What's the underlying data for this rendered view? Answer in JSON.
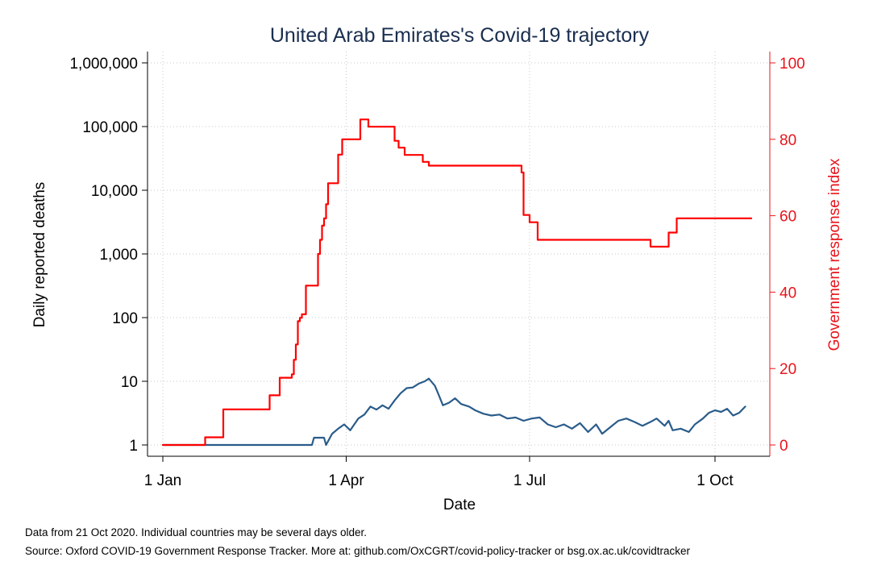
{
  "chart_data": {
    "type": "line",
    "title": "United Arab Emirates's Covid-19 trajectory",
    "xlabel": "Date",
    "ylabel_left": "Daily reported deaths",
    "ylabel_right": "Government response index",
    "left_axis": {
      "scale": "log",
      "ylim": [
        1,
        1000000
      ],
      "ticks": [
        1,
        10,
        100,
        1000,
        10000,
        100000,
        1000000
      ],
      "tick_labels": [
        "1",
        "10",
        "100",
        "1,000",
        "10,000",
        "100,000",
        "1,000,000"
      ]
    },
    "right_axis": {
      "scale": "linear",
      "ylim": [
        0,
        100
      ],
      "ticks": [
        0,
        20,
        40,
        60,
        80,
        100
      ],
      "tick_labels": [
        "0",
        "20",
        "40",
        "60",
        "80",
        "100"
      ]
    },
    "x_axis": {
      "range": [
        "2020-01-01",
        "2020-10-21"
      ],
      "ticks": [
        "2020-01-01",
        "2020-04-01",
        "2020-07-01",
        "2020-10-01"
      ],
      "tick_labels": [
        "1 Jan",
        "1 Apr",
        "1 Jul",
        "1 Oct"
      ]
    },
    "grid": true,
    "colors": {
      "deaths": "#2a5c8a",
      "stringency": "#ff0000",
      "title": "#1a2e4f",
      "right_axis": "#e8141b"
    },
    "series": [
      {
        "axis": "left",
        "style": "smooth",
        "points": [
          [
            "2020-01-01",
            1
          ],
          [
            "2020-03-15",
            1
          ],
          [
            "2020-03-16",
            1.3
          ],
          [
            "2020-03-21",
            1.3
          ],
          [
            "2020-03-22",
            1
          ],
          [
            "2020-03-25",
            1.5
          ],
          [
            "2020-03-28",
            1.8
          ],
          [
            "2020-03-31",
            2.1
          ],
          [
            "2020-04-03",
            1.7
          ],
          [
            "2020-04-07",
            2.6
          ],
          [
            "2020-04-10",
            3.0
          ],
          [
            "2020-04-13",
            4.0
          ],
          [
            "2020-04-16",
            3.6
          ],
          [
            "2020-04-19",
            4.2
          ],
          [
            "2020-04-22",
            3.7
          ],
          [
            "2020-04-25",
            5.0
          ],
          [
            "2020-04-28",
            6.5
          ],
          [
            "2020-05-01",
            7.8
          ],
          [
            "2020-05-04",
            8.0
          ],
          [
            "2020-05-07",
            9.2
          ],
          [
            "2020-05-10",
            10.0
          ],
          [
            "2020-05-12",
            11.0
          ],
          [
            "2020-05-15",
            8.5
          ],
          [
            "2020-05-17",
            6.0
          ],
          [
            "2020-05-19",
            4.2
          ],
          [
            "2020-05-22",
            4.6
          ],
          [
            "2020-05-25",
            5.4
          ],
          [
            "2020-05-28",
            4.4
          ],
          [
            "2020-06-01",
            4.0
          ],
          [
            "2020-06-04",
            3.5
          ],
          [
            "2020-06-08",
            3.1
          ],
          [
            "2020-06-12",
            2.9
          ],
          [
            "2020-06-16",
            3.0
          ],
          [
            "2020-06-20",
            2.6
          ],
          [
            "2020-06-24",
            2.7
          ],
          [
            "2020-06-28",
            2.4
          ],
          [
            "2020-07-02",
            2.6
          ],
          [
            "2020-07-06",
            2.7
          ],
          [
            "2020-07-10",
            2.1
          ],
          [
            "2020-07-14",
            1.9
          ],
          [
            "2020-07-18",
            2.1
          ],
          [
            "2020-07-22",
            1.8
          ],
          [
            "2020-07-26",
            2.2
          ],
          [
            "2020-07-30",
            1.6
          ],
          [
            "2020-08-03",
            2.1
          ],
          [
            "2020-08-06",
            1.5
          ],
          [
            "2020-08-10",
            1.9
          ],
          [
            "2020-08-14",
            2.4
          ],
          [
            "2020-08-18",
            2.6
          ],
          [
            "2020-08-22",
            2.3
          ],
          [
            "2020-08-26",
            2.0
          ],
          [
            "2020-08-30",
            2.3
          ],
          [
            "2020-09-02",
            2.6
          ],
          [
            "2020-09-06",
            2.0
          ],
          [
            "2020-09-08",
            2.4
          ],
          [
            "2020-09-10",
            1.7
          ],
          [
            "2020-09-14",
            1.8
          ],
          [
            "2020-09-18",
            1.6
          ],
          [
            "2020-09-21",
            2.1
          ],
          [
            "2020-09-25",
            2.6
          ],
          [
            "2020-09-28",
            3.2
          ],
          [
            "2020-10-01",
            3.5
          ],
          [
            "2020-10-04",
            3.3
          ],
          [
            "2020-10-07",
            3.7
          ],
          [
            "2020-10-10",
            2.9
          ],
          [
            "2020-10-13",
            3.2
          ],
          [
            "2020-10-16",
            4.0
          ]
        ]
      },
      {
        "axis": "right",
        "style": "step",
        "points": [
          [
            "2020-01-01",
            0
          ],
          [
            "2020-01-22",
            2
          ],
          [
            "2020-01-31",
            9.3
          ],
          [
            "2020-02-23",
            13
          ],
          [
            "2020-02-28",
            17.6
          ],
          [
            "2020-03-05",
            18.5
          ],
          [
            "2020-03-06",
            22.3
          ],
          [
            "2020-03-07",
            26.3
          ],
          [
            "2020-03-08",
            32.4
          ],
          [
            "2020-03-09",
            33.3
          ],
          [
            "2020-03-10",
            34.2
          ],
          [
            "2020-03-12",
            41.7
          ],
          [
            "2020-03-18",
            50.0
          ],
          [
            "2020-03-19",
            53.7
          ],
          [
            "2020-03-20",
            57.4
          ],
          [
            "2020-03-21",
            59.3
          ],
          [
            "2020-03-22",
            63.0
          ],
          [
            "2020-03-23",
            68.5
          ],
          [
            "2020-03-28",
            76.0
          ],
          [
            "2020-03-30",
            80.0
          ],
          [
            "2020-04-08",
            85.2
          ],
          [
            "2020-04-12",
            83.3
          ],
          [
            "2020-04-25",
            79.6
          ],
          [
            "2020-04-27",
            77.8
          ],
          [
            "2020-04-30",
            75.9
          ],
          [
            "2020-05-09",
            74.1
          ],
          [
            "2020-05-12",
            73.1
          ],
          [
            "2020-06-27",
            71.3
          ],
          [
            "2020-06-28",
            60.2
          ],
          [
            "2020-07-01",
            58.3
          ],
          [
            "2020-07-05",
            53.7
          ],
          [
            "2020-08-30",
            51.9
          ],
          [
            "2020-09-08",
            55.6
          ],
          [
            "2020-09-12",
            59.3
          ],
          [
            "2020-10-19",
            59.3
          ]
        ]
      }
    ]
  },
  "notes": {
    "line1": "Data from 21 Oct 2020. Individual countries may be several days older.",
    "line2": "Source: Oxford COVID-19 Government Response Tracker. More at: github.com/OxCGRT/covid-policy-tracker or bsg.ox.ac.uk/covidtracker"
  }
}
